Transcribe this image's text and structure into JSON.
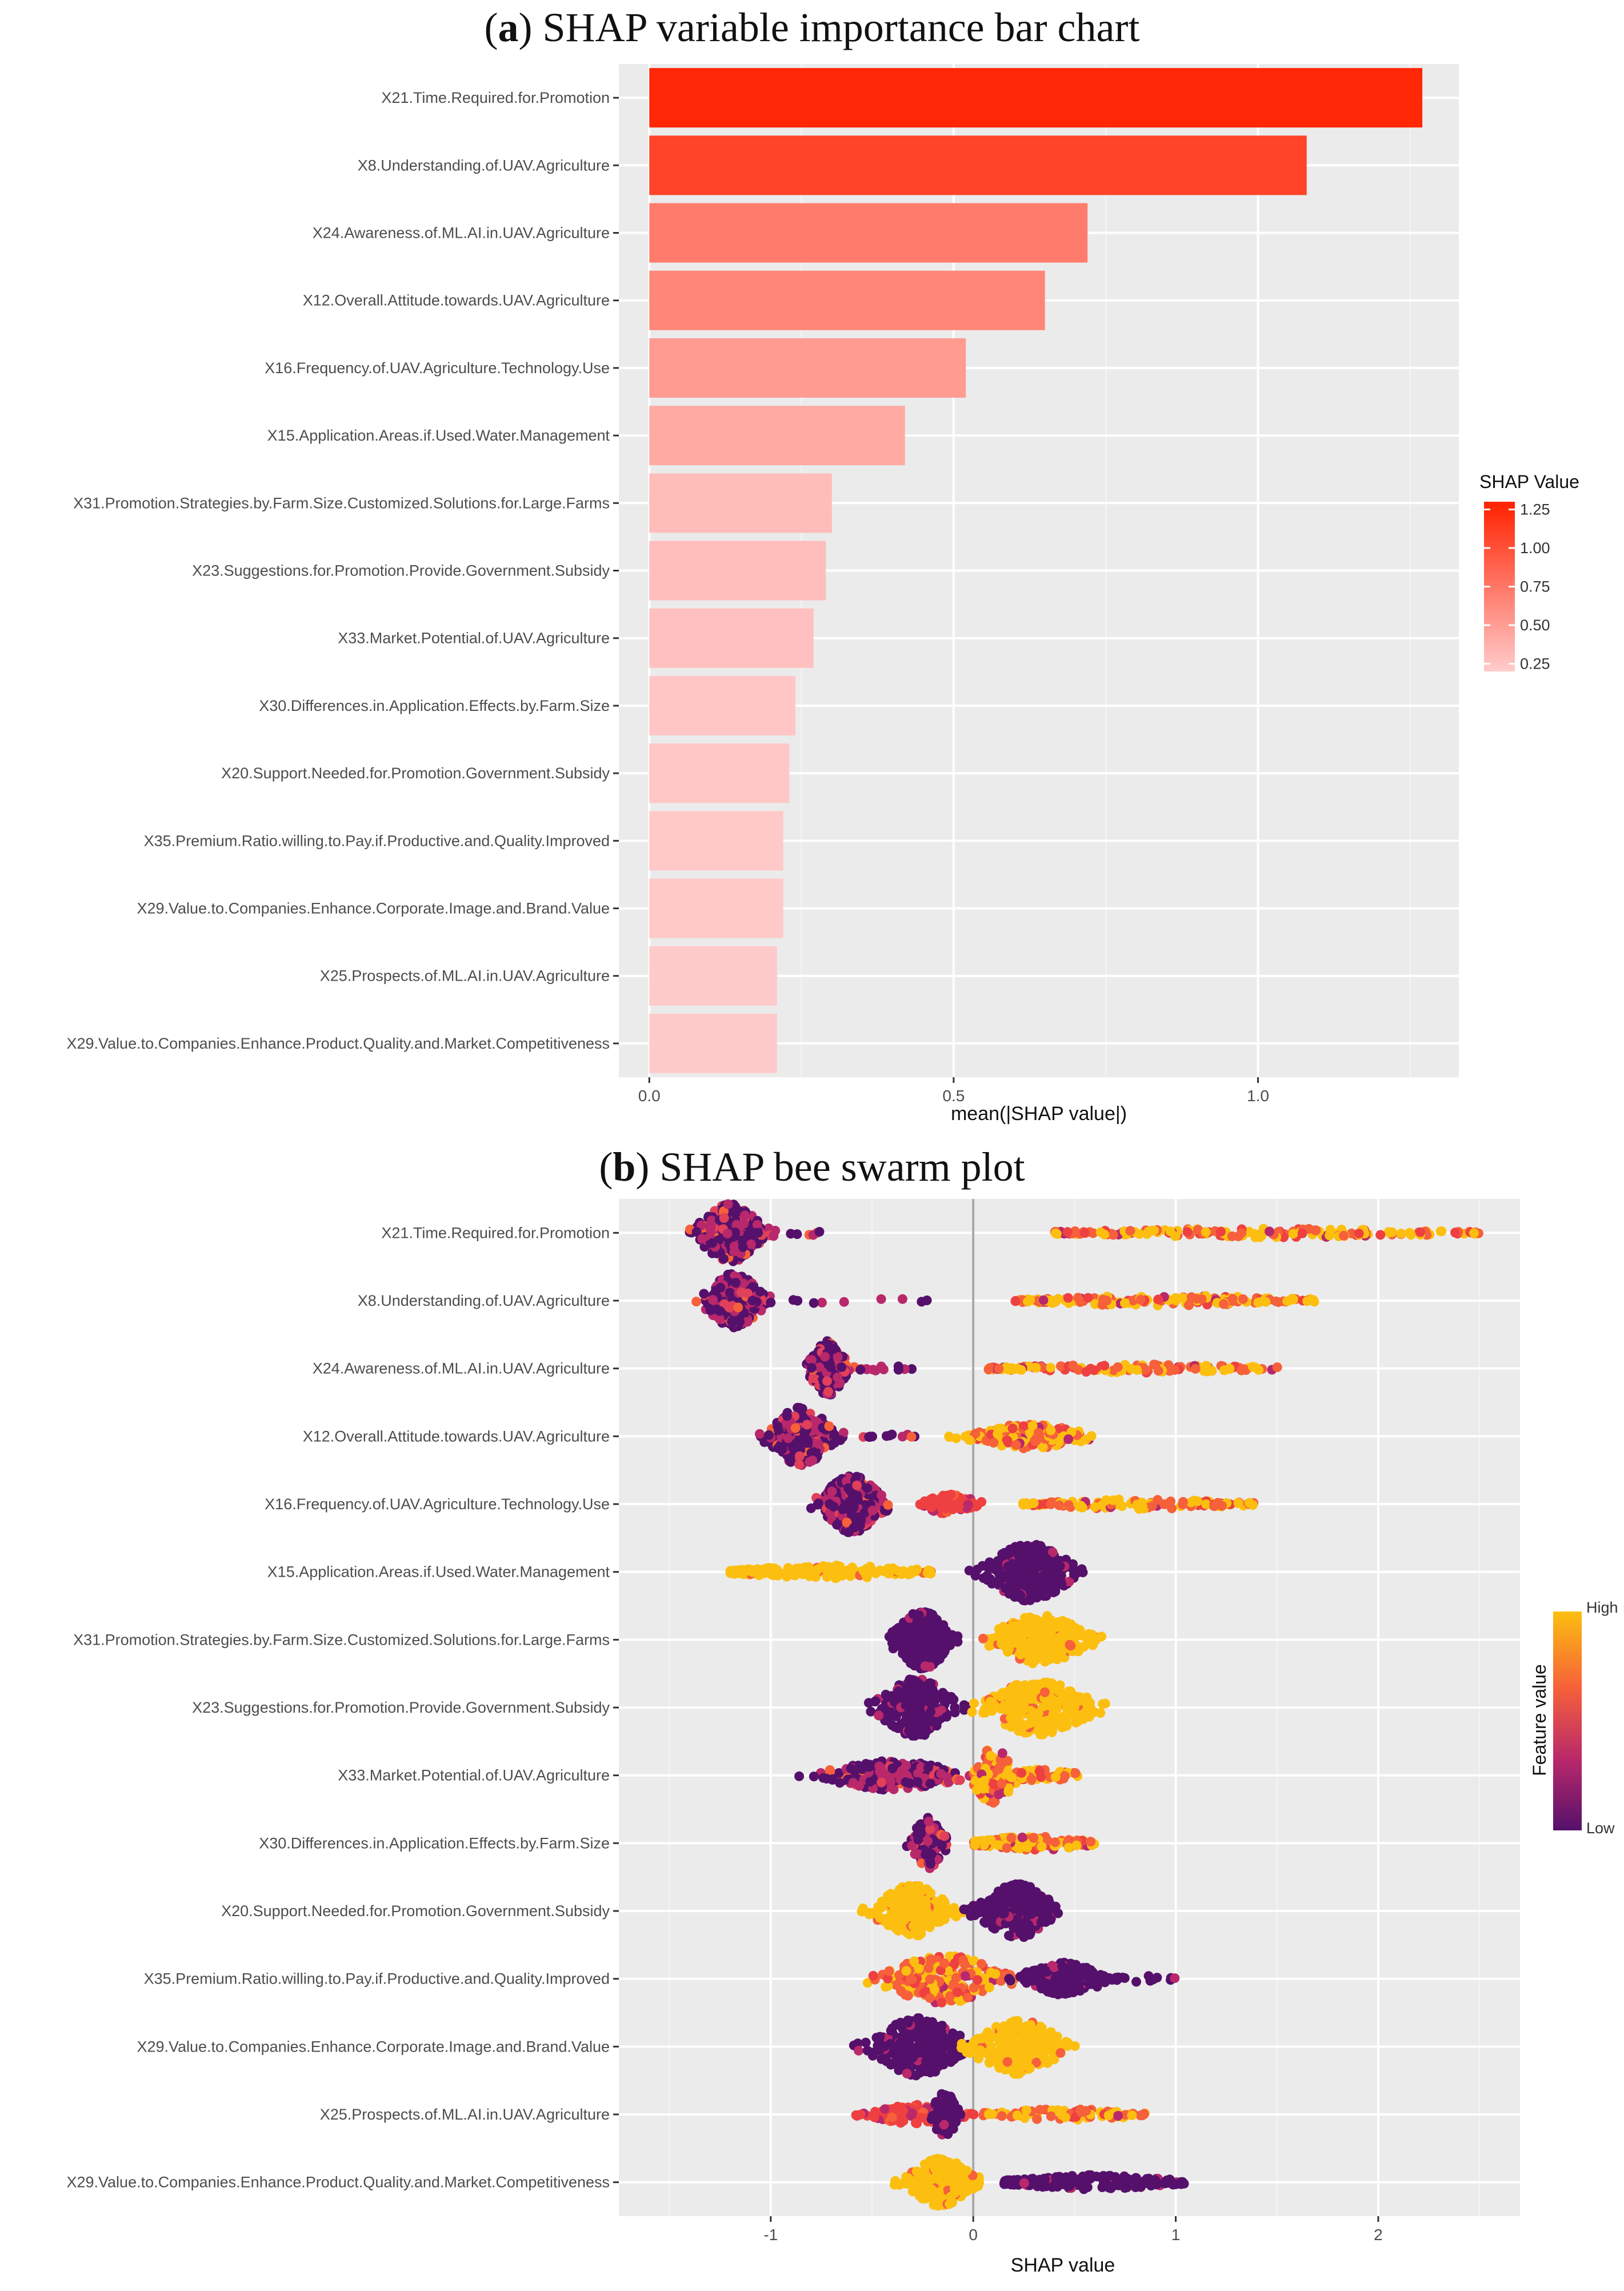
{
  "panels": {
    "a": {
      "letter": "a",
      "title": "SHAP variable importance bar chart"
    },
    "b": {
      "letter": "b",
      "title": "SHAP bee swarm plot"
    }
  },
  "features": [
    "X21.Time.Required.for.Promotion",
    "X8.Understanding.of.UAV.Agriculture",
    "X24.Awareness.of.ML.AI.in.UAV.Agriculture",
    "X12.Overall.Attitude.towards.UAV.Agriculture",
    "X16.Frequency.of.UAV.Agriculture.Technology.Use",
    "X15.Application.Areas.if.Used.Water.Management",
    "X31.Promotion.Strategies.by.Farm.Size.Customized.Solutions.for.Large.Farms",
    "X23.Suggestions.for.Promotion.Provide.Government.Subsidy",
    "X33.Market.Potential.of.UAV.Agriculture",
    "X30.Differences.in.Application.Effects.by.Farm.Size",
    "X20.Support.Needed.for.Promotion.Government.Subsidy",
    "X35.Premium.Ratio.willing.to.Pay.if.Productive.and.Quality.Improved",
    "X29.Value.to.Companies.Enhance.Corporate.Image.and.Brand.Value",
    "X25.Prospects.of.ML.AI.in.UAV.Agriculture",
    "X29.Value.to.Companies.Enhance.Product.Quality.and.Market.Competitiveness"
  ],
  "chart_data": [
    {
      "id": "bar",
      "type": "bar",
      "orientation": "horizontal",
      "title": "(a) SHAP variable importance bar chart",
      "xlabel": "mean(|SHAP value|)",
      "ylabel": "",
      "xlim": [
        -0.05,
        1.33
      ],
      "xticks": [
        0.0,
        0.5,
        1.0
      ],
      "xtick_labels": [
        "0.0",
        "0.5",
        "1.0"
      ],
      "values": [
        1.27,
        1.08,
        0.72,
        0.65,
        0.52,
        0.42,
        0.3,
        0.29,
        0.27,
        0.24,
        0.23,
        0.22,
        0.22,
        0.21,
        0.21
      ],
      "grid": true,
      "legend": {
        "title": "SHAP Value",
        "position": "right",
        "ticks": [
          "1.25",
          "1.00",
          "0.75",
          "0.50",
          "0.25"
        ],
        "tick_values": [
          1.25,
          1.0,
          0.75,
          0.5,
          0.25
        ],
        "range": [
          0.2,
          1.3
        ],
        "color_low": "#ffcccc",
        "color_high": "#ff2200"
      }
    },
    {
      "id": "beeswarm",
      "type": "scatter",
      "title": "(b) SHAP bee swarm plot",
      "xlabel": "SHAP value",
      "ylabel": "",
      "xlim": [
        -1.75,
        2.7
      ],
      "xticks": [
        -1,
        0,
        1,
        2
      ],
      "xtick_labels": [
        "-1",
        "0",
        "1",
        "2"
      ],
      "zero_line": 0,
      "grid": true,
      "legend": {
        "title": "Feature value",
        "position": "right",
        "high_label": "High",
        "low_label": "Low",
        "colors": [
          "#fcbf10",
          "#f6603a",
          "#b8286b",
          "#55106b"
        ]
      },
      "clusters": [
        [
          {
            "c": -1.2,
            "w": 0.34,
            "n": 300,
            "color": "mix_dark",
            "h": 0.9
          },
          {
            "c": -0.9,
            "w": 0.4,
            "n": 8,
            "color": "mix_dark",
            "h": 0.1
          },
          {
            "c": 1.45,
            "w": 2.1,
            "n": 170,
            "color": "mix_warm",
            "h": 0.14
          }
        ],
        [
          {
            "c": -1.18,
            "w": 0.3,
            "n": 230,
            "color": "mix_dark",
            "h": 0.85
          },
          {
            "c": -0.65,
            "w": 0.9,
            "n": 10,
            "color": "mix_dark",
            "h": 0.1
          },
          {
            "c": 0.95,
            "w": 1.5,
            "n": 160,
            "color": "mix_warm",
            "h": 0.16
          }
        ],
        [
          {
            "c": -0.72,
            "w": 0.2,
            "n": 170,
            "color": "mix_dark",
            "h": 0.85
          },
          {
            "c": -0.42,
            "w": 0.32,
            "n": 12,
            "color": "mix_dark",
            "h": 0.1
          },
          {
            "c": 0.8,
            "w": 1.45,
            "n": 120,
            "color": "mix_warm",
            "h": 0.13
          }
        ],
        [
          {
            "c": -0.85,
            "w": 0.33,
            "n": 280,
            "color": "mix_dark",
            "h": 0.9
          },
          {
            "c": -0.4,
            "w": 0.3,
            "n": 12,
            "color": "mix_dark",
            "h": 0.1
          },
          {
            "c": 0.28,
            "w": 0.62,
            "n": 170,
            "color": "mix_warm",
            "h": 0.38
          }
        ],
        [
          {
            "c": -0.6,
            "w": 0.33,
            "n": 300,
            "color": "mix_dark",
            "h": 0.88
          },
          {
            "c": -0.12,
            "w": 0.3,
            "n": 90,
            "color": "red",
            "h": 0.3
          },
          {
            "c": 0.82,
            "w": 1.15,
            "n": 120,
            "color": "mix_warm",
            "h": 0.15
          }
        ],
        [
          {
            "c": -0.7,
            "w": 1.0,
            "n": 190,
            "color": "yellow",
            "h": 0.2
          },
          {
            "c": 0.28,
            "w": 0.45,
            "n": 290,
            "color": "purple",
            "h": 0.9
          }
        ],
        [
          {
            "c": -0.25,
            "w": 0.3,
            "n": 270,
            "color": "purple",
            "h": 0.9
          },
          {
            "c": 0.33,
            "w": 0.52,
            "n": 260,
            "color": "yellow",
            "h": 0.75
          }
        ],
        [
          {
            "c": -0.28,
            "w": 0.4,
            "n": 260,
            "color": "purple",
            "h": 0.9
          },
          {
            "c": 0.32,
            "w": 0.55,
            "n": 260,
            "color": "yellow",
            "h": 0.85
          }
        ],
        [
          {
            "c": -0.4,
            "w": 0.75,
            "n": 220,
            "color": "mix_dark",
            "h": 0.45
          },
          {
            "c": 0.1,
            "w": 0.25,
            "n": 110,
            "color": "mix_warm",
            "h": 0.85
          },
          {
            "c": 0.35,
            "w": 0.35,
            "n": 50,
            "color": "mix_warm",
            "h": 0.2
          }
        ],
        [
          {
            "c": -0.22,
            "w": 0.18,
            "n": 140,
            "color": "mix_dark",
            "h": 0.8
          },
          {
            "c": 0.3,
            "w": 0.6,
            "n": 120,
            "color": "mix_warm",
            "h": 0.22
          }
        ],
        [
          {
            "c": -0.3,
            "w": 0.4,
            "n": 230,
            "color": "yellow",
            "h": 0.8
          },
          {
            "c": 0.22,
            "w": 0.4,
            "n": 230,
            "color": "purple",
            "h": 0.85
          }
        ],
        [
          {
            "c": -0.15,
            "w": 0.65,
            "n": 240,
            "color": "mix_warm",
            "h": 0.75
          },
          {
            "c": 0.45,
            "w": 0.45,
            "n": 200,
            "color": "purple",
            "h": 0.5
          },
          {
            "c": 0.85,
            "w": 0.3,
            "n": 12,
            "color": "purple",
            "h": 0.12
          }
        ],
        [
          {
            "c": -0.27,
            "w": 0.48,
            "n": 260,
            "color": "purple",
            "h": 0.9
          },
          {
            "c": 0.22,
            "w": 0.48,
            "n": 250,
            "color": "yellow",
            "h": 0.85
          }
        ],
        [
          {
            "c": -0.28,
            "w": 0.5,
            "n": 110,
            "color": "red",
            "h": 0.3
          },
          {
            "c": -0.14,
            "w": 0.14,
            "n": 90,
            "color": "purple",
            "h": 0.7
          },
          {
            "c": 0.45,
            "w": 0.8,
            "n": 90,
            "color": "mix_warm",
            "h": 0.18
          }
        ],
        [
          {
            "c": -0.16,
            "w": 0.35,
            "n": 220,
            "color": "yellow",
            "h": 0.75
          },
          {
            "c": 0.6,
            "w": 0.9,
            "n": 200,
            "color": "purple",
            "h": 0.22
          }
        ]
      ]
    }
  ]
}
